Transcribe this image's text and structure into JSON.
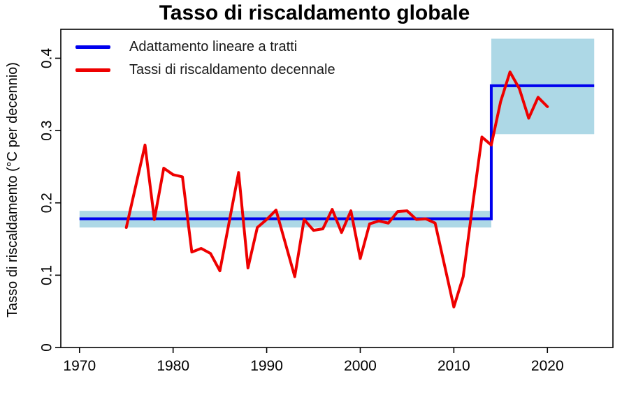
{
  "title": "Tasso di riscaldamento globale",
  "colors": {
    "fit_line": "#0000EE",
    "rate_line": "#EE0000",
    "confidence_band": "#ADD8E6",
    "axis": "#000000",
    "background": "#FFFFFF"
  },
  "legend": {
    "items": [
      {
        "label": "Adattamento lineare a tratti",
        "color": "#0000EE"
      },
      {
        "label": "Tassi di riscaldamento decennale",
        "color": "#EE0000"
      }
    ]
  },
  "chart_data": {
    "type": "line",
    "title": "Tasso di riscaldamento globale",
    "xlabel": "",
    "ylabel": "Tasso di riscaldamento (°C per decennio)",
    "xlim": [
      1968,
      2027
    ],
    "ylim": [
      0,
      0.44
    ],
    "x_ticks": [
      1970,
      1980,
      1990,
      2000,
      2010,
      2020
    ],
    "y_ticks": [
      0,
      0.1,
      0.2,
      0.3,
      0.4
    ],
    "grid": false,
    "legend_position": "top-left",
    "confidence_bands": [
      {
        "name": "band-pre-2014",
        "x_start": 1970,
        "x_end": 2014,
        "y_low": 0.166,
        "y_high": 0.189,
        "color": "#ADD8E6"
      },
      {
        "name": "band-post-2014",
        "x_start": 2014,
        "x_end": 2025,
        "y_low": 0.295,
        "y_high": 0.427,
        "color": "#ADD8E6"
      }
    ],
    "series": [
      {
        "name": "Adattamento lineare a tratti",
        "type": "step",
        "color": "#0000EE",
        "points": [
          [
            1970,
            0.178
          ],
          [
            2014,
            0.178
          ],
          [
            2014,
            0.362
          ],
          [
            2025,
            0.362
          ]
        ]
      },
      {
        "name": "Tassi di riscaldamento decennale",
        "type": "line",
        "color": "#EE0000",
        "x": [
          1975,
          1976,
          1977,
          1978,
          1979,
          1980,
          1981,
          1982,
          1983,
          1984,
          1985,
          1986,
          1987,
          1988,
          1989,
          1990,
          1991,
          1992,
          1993,
          1994,
          1995,
          1996,
          1997,
          1998,
          1999,
          2000,
          2001,
          2002,
          2003,
          2004,
          2005,
          2006,
          2007,
          2008,
          2009,
          2010,
          2011,
          2012,
          2013,
          2014,
          2015,
          2016,
          2017,
          2018,
          2019,
          2020
        ],
        "values": [
          0.166,
          0.223,
          0.28,
          0.177,
          0.248,
          0.239,
          0.236,
          0.132,
          0.137,
          0.13,
          0.106,
          0.174,
          0.242,
          0.11,
          0.166,
          0.177,
          0.19,
          0.144,
          0.098,
          0.177,
          0.162,
          0.164,
          0.191,
          0.159,
          0.189,
          0.123,
          0.171,
          0.175,
          0.172,
          0.188,
          0.189,
          0.177,
          0.178,
          0.172,
          0.114,
          0.056,
          0.098,
          0.196,
          0.291,
          0.28,
          0.34,
          0.381,
          0.358,
          0.317,
          0.346,
          0.333
        ]
      }
    ]
  }
}
